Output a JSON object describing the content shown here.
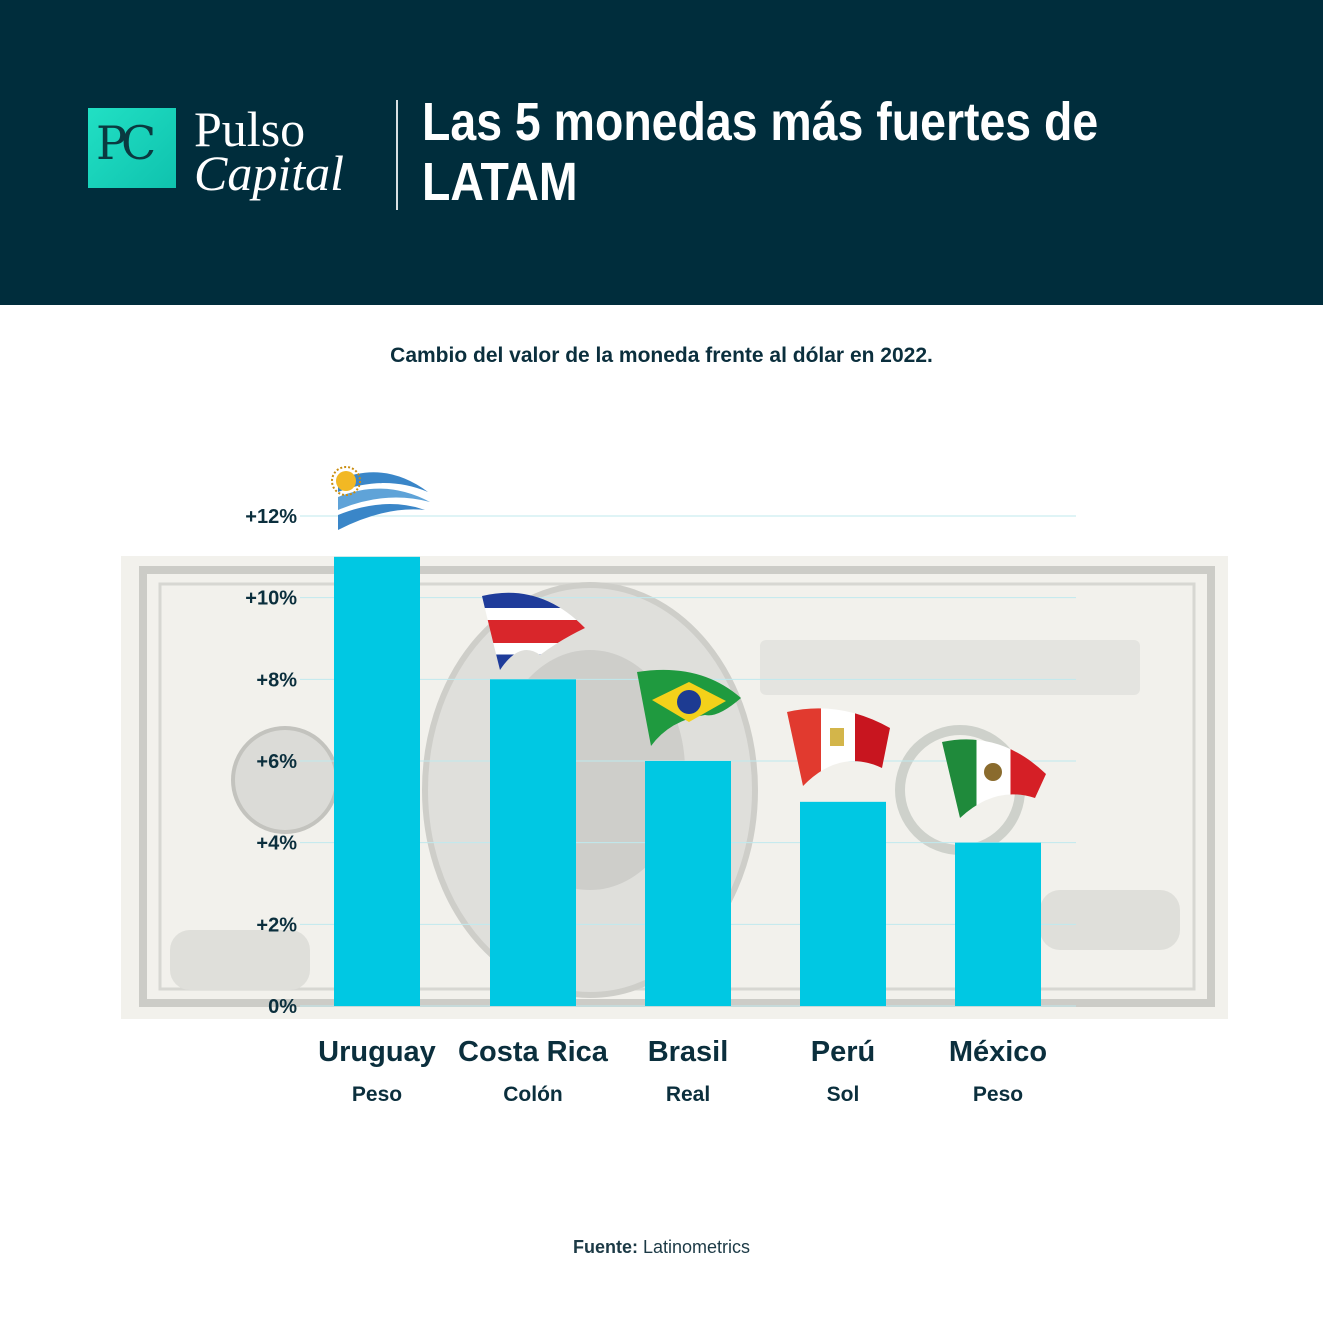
{
  "header": {
    "logo_mark": "PC",
    "logo_line1": "Pulso",
    "logo_line2": "Capital",
    "title": "Las 5 monedas más fuertes de LATAM"
  },
  "subtitle": "Cambio del valor de la moneda frente al dólar en 2022.",
  "source": {
    "label": "Fuente:",
    "value": "Latinometrics"
  },
  "colors": {
    "header_bg": "#002d3c",
    "bar": "#00c8e3",
    "text": "#0b2f3d",
    "logo": "#1ed8bd"
  },
  "chart_data": {
    "type": "bar",
    "title": "Cambio del valor de la moneda frente al dólar en 2022.",
    "categories": [
      "Uruguay",
      "Costa Rica",
      "Brasil",
      "Perú",
      "México"
    ],
    "currencies": [
      "Peso",
      "Colón",
      "Real",
      "Sol",
      "Peso"
    ],
    "flags": [
      "uruguay-flag",
      "costa-rica-flag",
      "brazil-flag",
      "peru-flag",
      "mexico-flag"
    ],
    "values": [
      11,
      8,
      6,
      5,
      4
    ],
    "unit": "%",
    "ylim": [
      0,
      12
    ],
    "yticks": [
      0,
      2,
      4,
      6,
      8,
      10,
      12
    ],
    "ytick_labels": [
      "0%",
      "+2%",
      "+4%",
      "+6%",
      "+8%",
      "+10%",
      "+12%"
    ],
    "grid": true,
    "background_image": "hundred-dollar-bill"
  }
}
